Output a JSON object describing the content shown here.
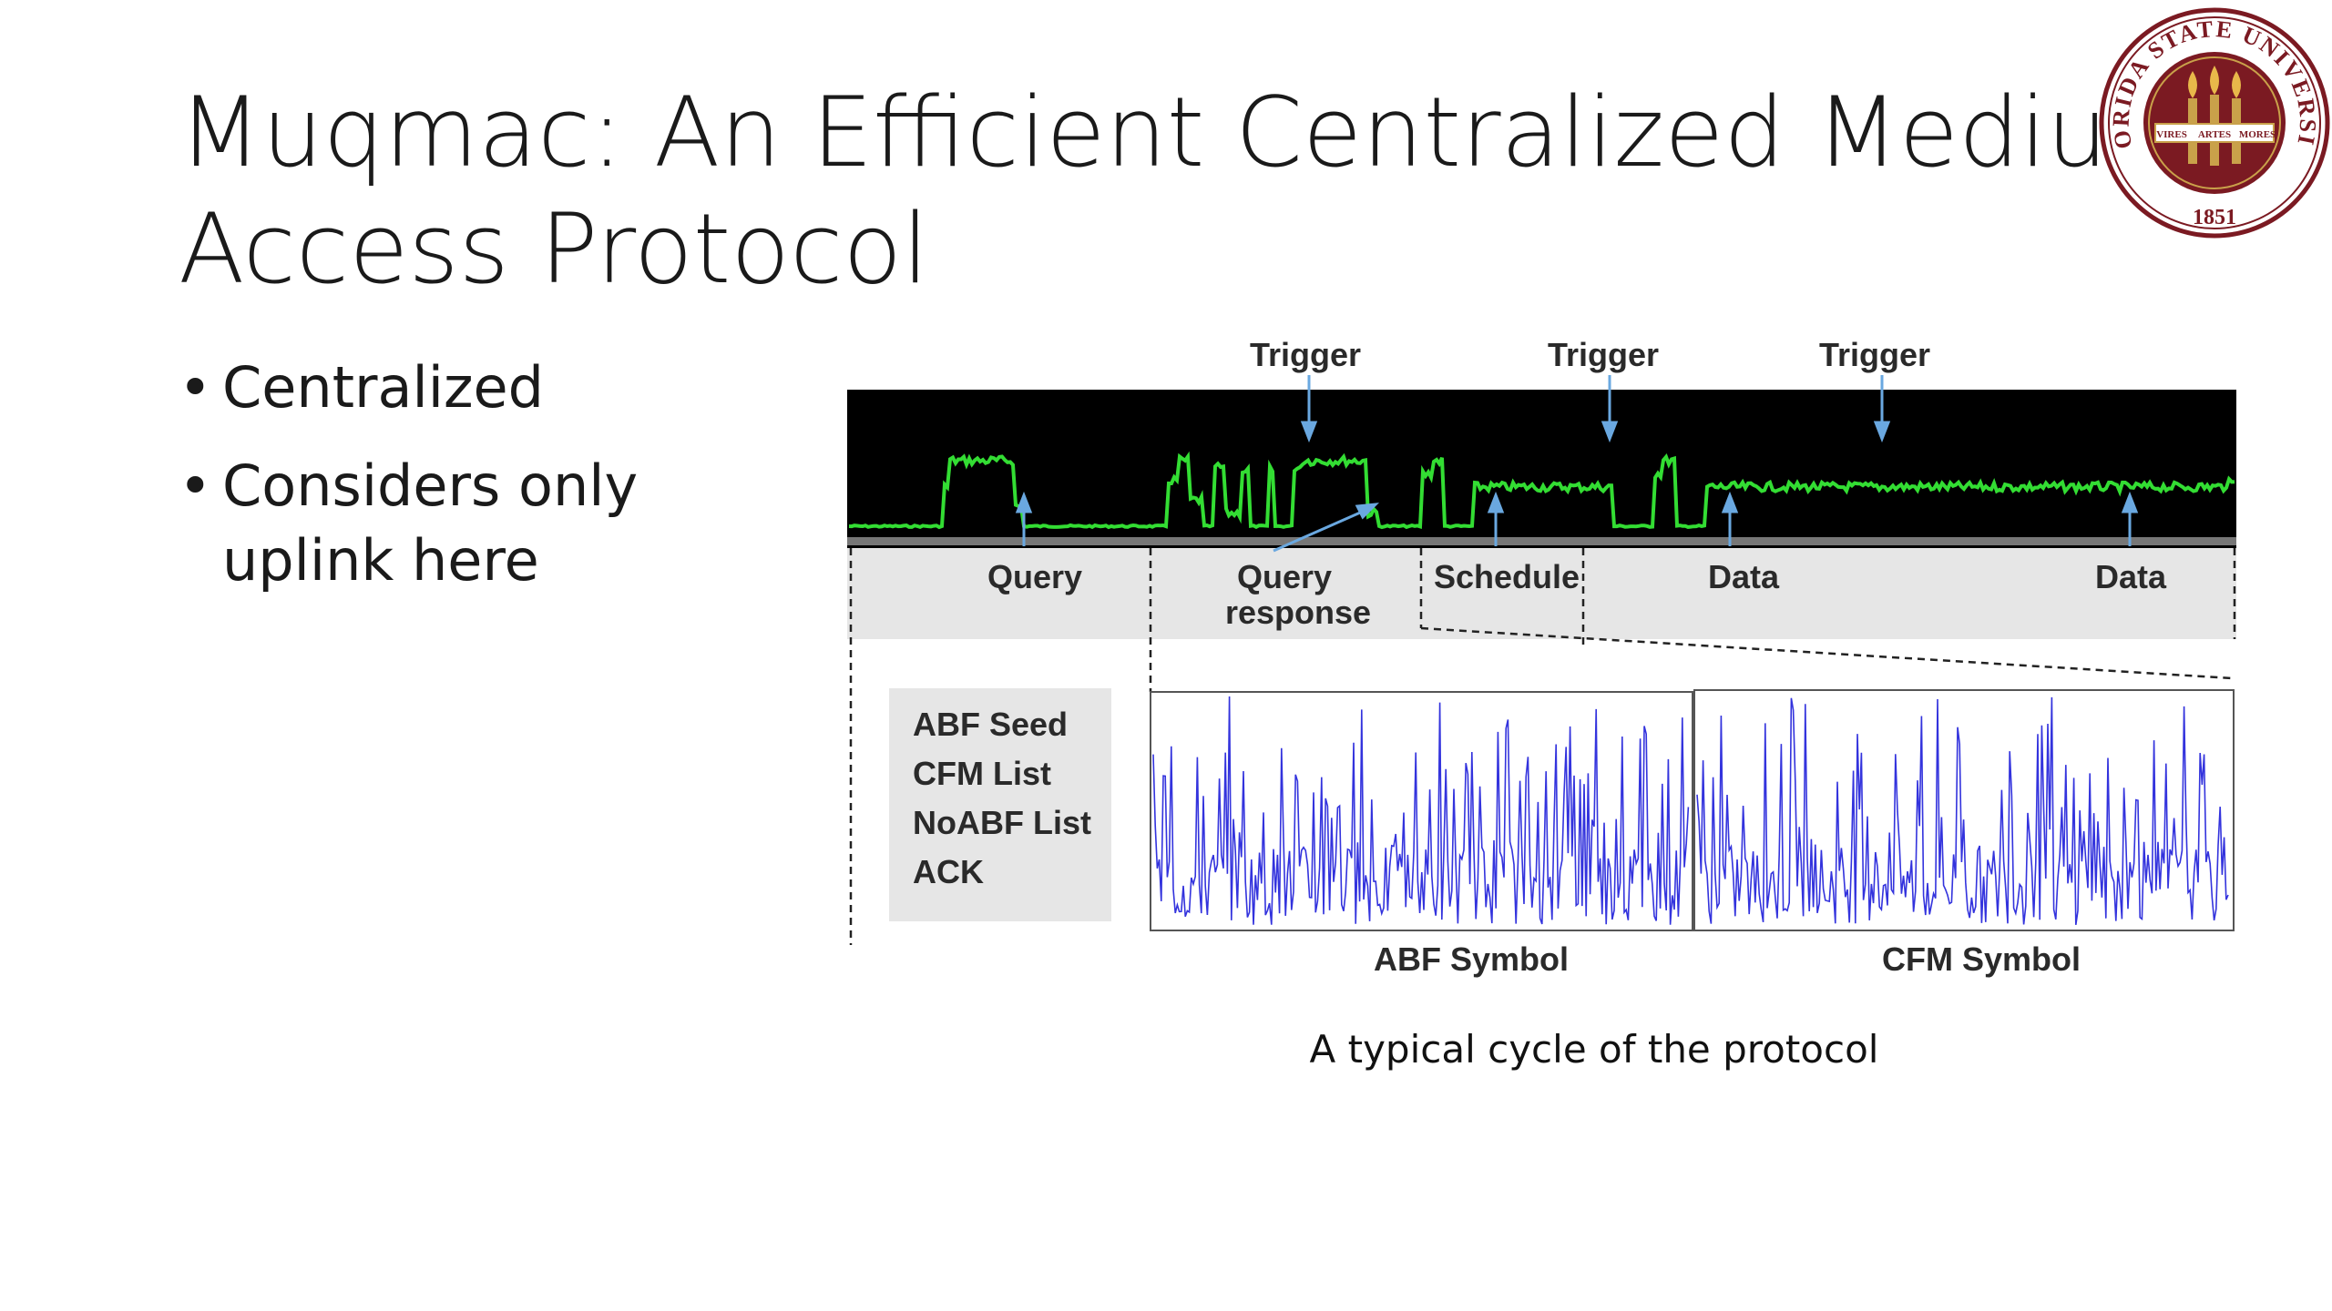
{
  "slide": {
    "title_line1": "Muqmac: An Efficient Centralized Medium",
    "title_line2": "Access Protocol",
    "bullets": [
      "Centralized",
      "Considers only uplink here"
    ],
    "caption": "A typical cycle of the protocol"
  },
  "seal": {
    "text_top": "FLORIDA STATE UNIVERSITY",
    "year": "1851",
    "motto": [
      "VIRES",
      "ARTES",
      "MORES"
    ],
    "colors": {
      "garnet": "#7b1a22",
      "gold": "#c9a14a"
    }
  },
  "figure": {
    "triggers": [
      "Trigger",
      "Trigger",
      "Trigger"
    ],
    "segments": [
      "Query",
      "Query response",
      "Schedule",
      "Data",
      "Data"
    ],
    "query_response_line1": "Query",
    "query_response_line2": "response",
    "fields": [
      "ABF Seed",
      "CFM List",
      "NoABF List",
      "ACK"
    ],
    "symbols": [
      "ABF Symbol",
      "CFM Symbol"
    ],
    "colors": {
      "signal": "#33dd33",
      "symbol": "#3333dd",
      "arrow": "#6aa8e0",
      "band": "#e6e6e6"
    }
  }
}
